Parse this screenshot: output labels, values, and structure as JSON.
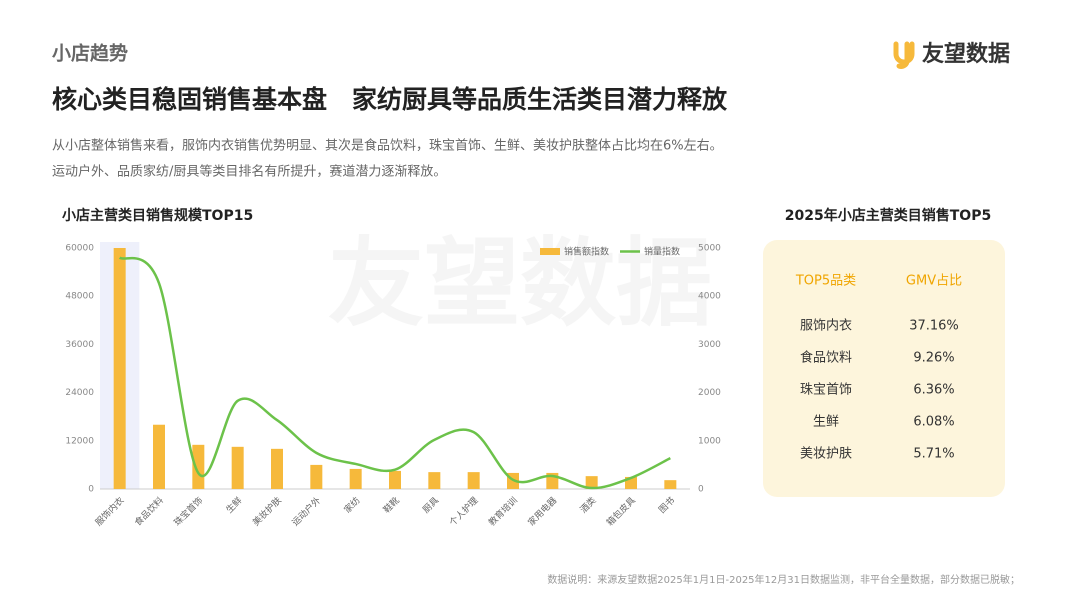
{
  "header": {
    "section": "小店趋势",
    "brand": "友望数据",
    "title": "核心类目稳固销售基本盘　家纺厨具等品质生活类目潜力释放",
    "paragraph": [
      "从小店整体销售来看，服饰内衣销售优势明显、其次是食品饮料，珠宝首饰、生鲜、美妆护肤整体占比均在6%左右。",
      "运动户外、品质家纺/厨具等类目排名有所提升，赛道潜力逐渐释放。"
    ]
  },
  "watermark": "友望数据",
  "chart_data": {
    "type": "bar-line",
    "title": "小店主营类目销售规模TOP15",
    "categories": [
      "服饰内衣",
      "食品饮料",
      "珠宝首饰",
      "生鲜",
      "美妆护肤",
      "运动户外",
      "家纺",
      "鞋靴",
      "厨具",
      "个人护理",
      "教育培训",
      "家用电器",
      "酒类",
      "箱包皮具",
      "图书"
    ],
    "series": [
      {
        "name": "销售额指数",
        "color": "#f6b93b",
        "type": "bar",
        "values": [
          60000,
          16000,
          11000,
          10500,
          10000,
          6000,
          5000,
          4500,
          4200,
          4200,
          4000,
          4000,
          3200,
          3000,
          2200
        ]
      },
      {
        "name": "销量指数",
        "color": "#6cc24a",
        "type": "line",
        "axis": "y2",
        "values": [
          4800,
          4270,
          330,
          1830,
          1430,
          750,
          520,
          400,
          1020,
          1180,
          190,
          270,
          20,
          230,
          640
        ]
      }
    ],
    "ylim": [
      0,
      60000
    ],
    "yticks": [
      0,
      12000,
      24000,
      36000,
      48000,
      60000
    ],
    "y2lim": [
      0,
      5000
    ],
    "y2ticks": [
      0,
      1000,
      2000,
      3000,
      4000,
      5000
    ],
    "legend": "upper right",
    "highlight_category": 0
  },
  "table": {
    "title": "2025年小店主营类目销售TOP5",
    "columns": [
      "TOP5品类",
      "GMV占比"
    ],
    "rows": [
      [
        "服饰内衣",
        "37.16%"
      ],
      [
        "食品饮料",
        "9.26%"
      ],
      [
        "珠宝首饰",
        "6.36%"
      ],
      [
        "生鲜",
        "6.08%"
      ],
      [
        "美妆护肤",
        "5.71%"
      ]
    ]
  },
  "footnote": "数据说明：来源友望数据2025年1月1日-2025年12月31日数据监测，非平台全量数据，部分数据已脱敏；"
}
